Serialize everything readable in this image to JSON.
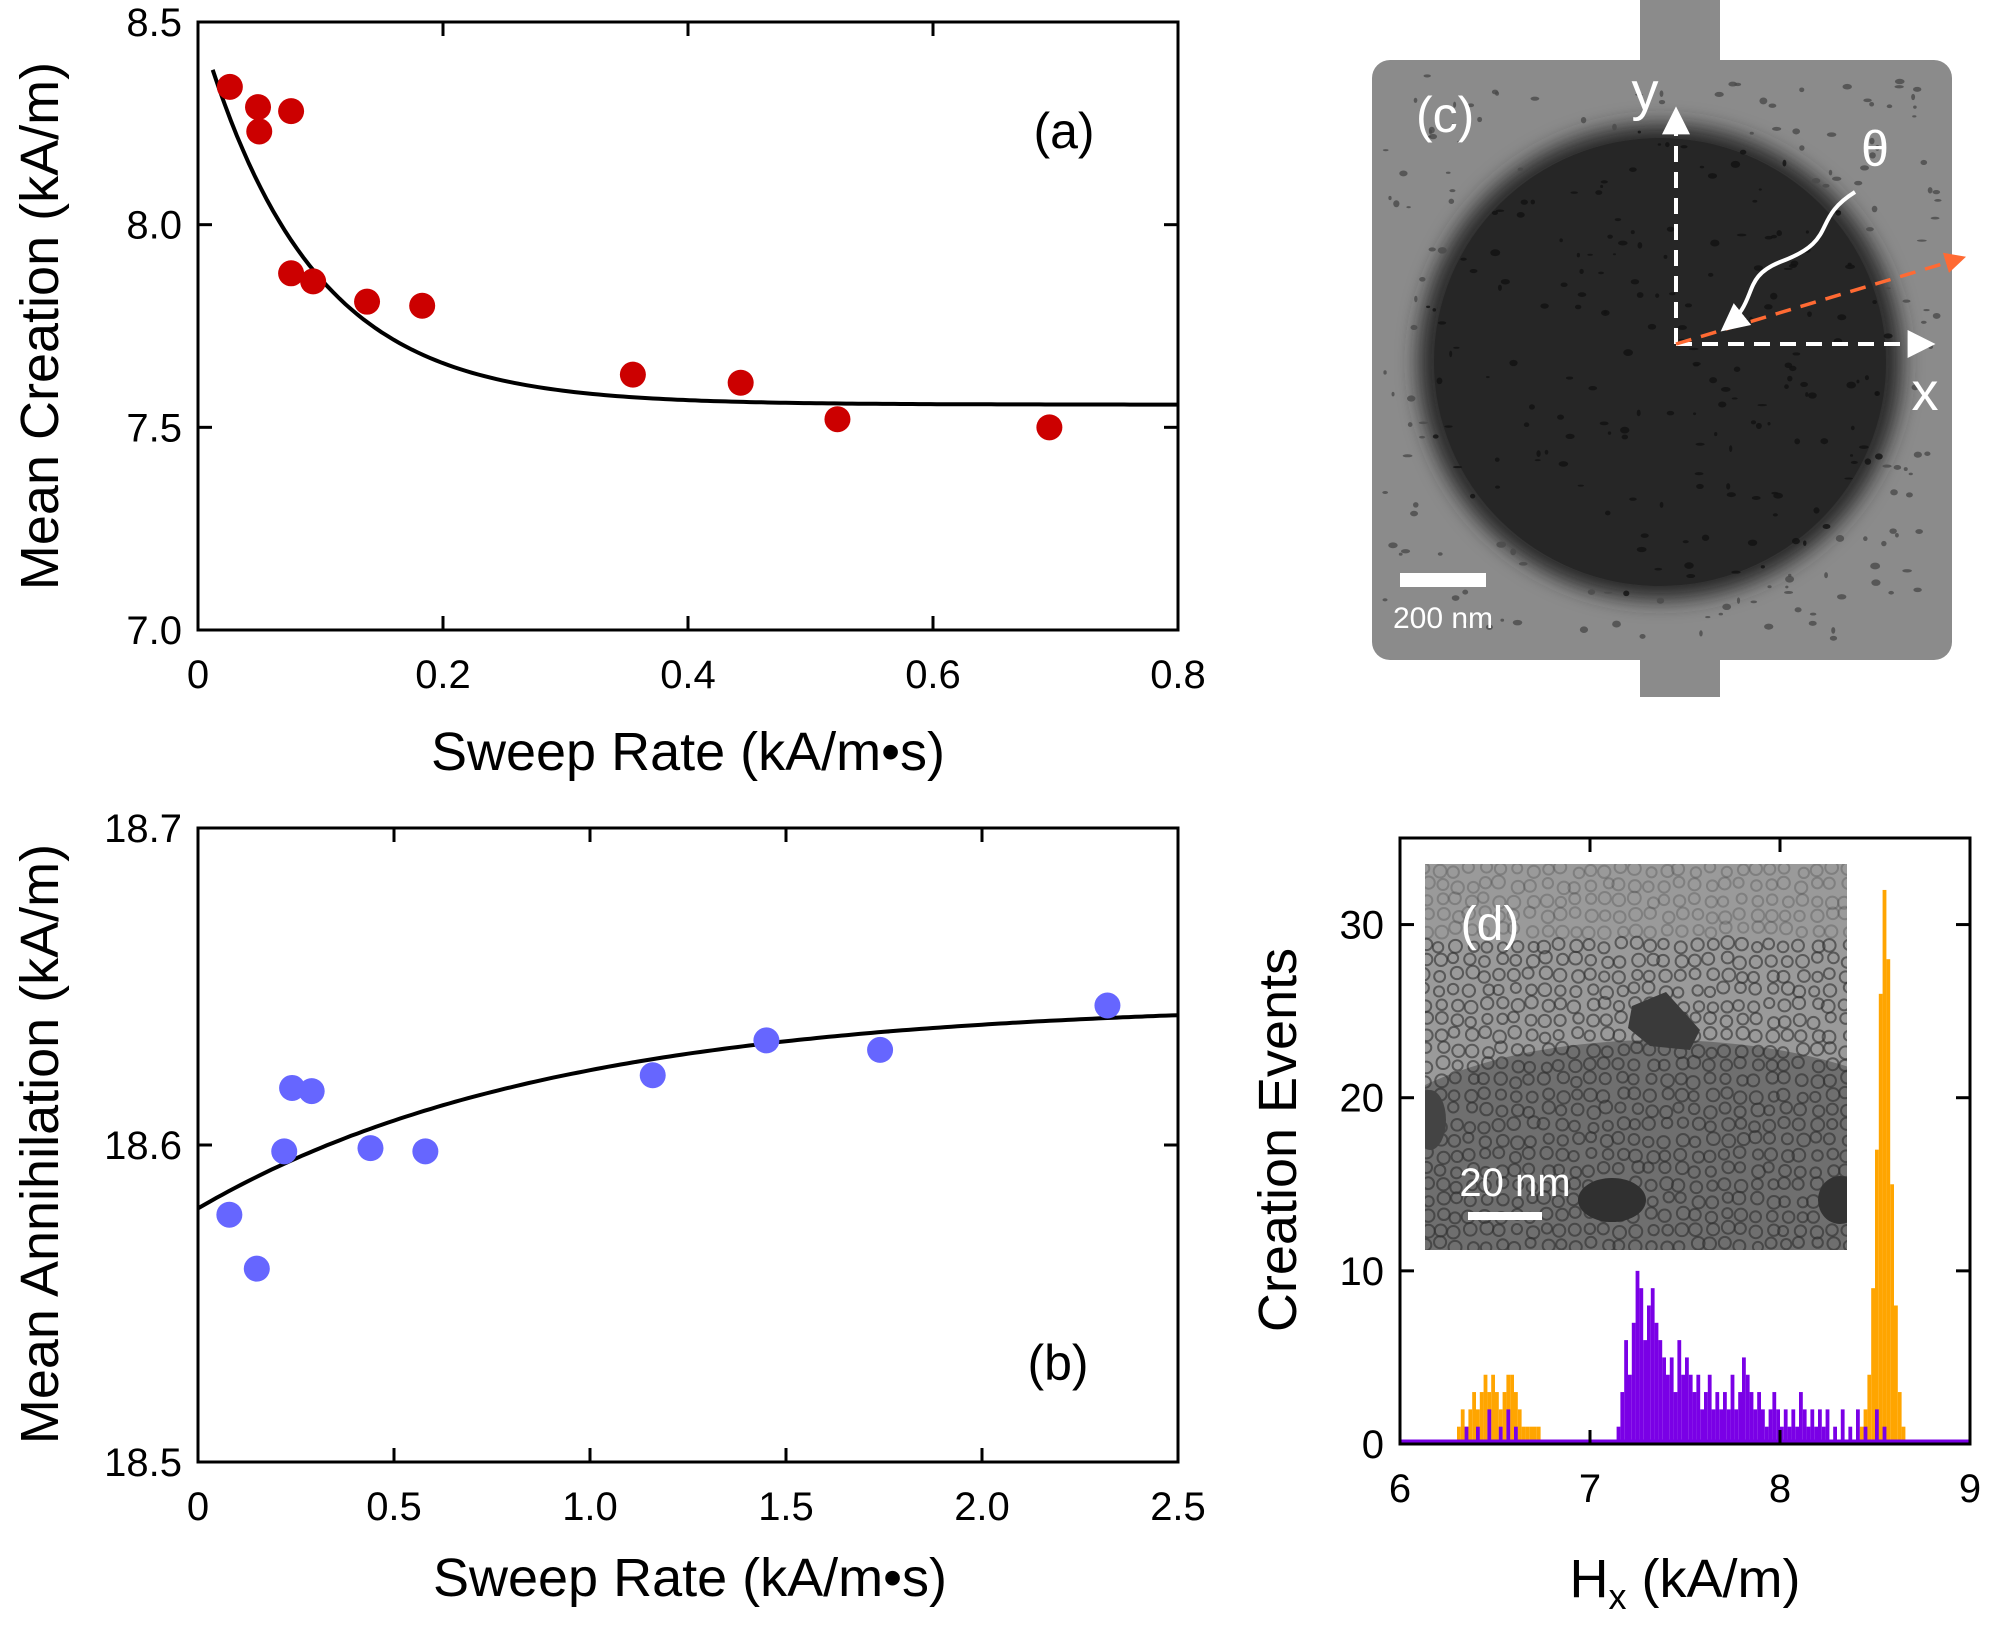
{
  "chart_data": [
    {
      "id": "a",
      "type": "scatter",
      "panel_label": "(a)",
      "title": "",
      "xlabel": "Sweep Rate (kA/m•s)",
      "ylabel": "Mean Creation (kA/m)",
      "xlim": [
        0,
        0.8
      ],
      "ylim": [
        7.0,
        8.5
      ],
      "xticks": [
        0,
        0.2,
        0.4,
        0.6,
        0.8
      ],
      "xtick_labels": [
        "0",
        "0.2",
        "0.4",
        "0.6",
        "0.8"
      ],
      "yticks": [
        7.0,
        7.5,
        8.0,
        8.5
      ],
      "ytick_labels": [
        "7.0",
        "7.5",
        "8.0",
        "8.5"
      ],
      "marker_color": "#cc0000",
      "points": [
        {
          "x": 0.026,
          "y": 8.34
        },
        {
          "x": 0.049,
          "y": 8.29
        },
        {
          "x": 0.05,
          "y": 8.23
        },
        {
          "x": 0.076,
          "y": 8.28
        },
        {
          "x": 0.076,
          "y": 7.88
        },
        {
          "x": 0.094,
          "y": 7.86
        },
        {
          "x": 0.138,
          "y": 7.81
        },
        {
          "x": 0.183,
          "y": 7.8
        },
        {
          "x": 0.355,
          "y": 7.63
        },
        {
          "x": 0.443,
          "y": 7.61
        },
        {
          "x": 0.522,
          "y": 7.52
        },
        {
          "x": 0.695,
          "y": 7.5
        }
      ],
      "fit": {
        "model": "exp_decay",
        "A": 7.556,
        "B": 0.944,
        "tau": 0.09,
        "x0": 0.012,
        "x1": 0.8
      }
    },
    {
      "id": "b",
      "type": "scatter",
      "panel_label": "(b)",
      "title": "",
      "xlabel": "Sweep Rate (kA/m•s)",
      "ylabel": "Mean Annihilation (kA/m)",
      "xlim": [
        0,
        2.5
      ],
      "ylim": [
        18.5,
        18.7
      ],
      "xticks": [
        0,
        0.5,
        1.0,
        1.5,
        2.0,
        2.5
      ],
      "xtick_labels": [
        "0",
        "0.5",
        "1.0",
        "1.5",
        "2.0",
        "2.5"
      ],
      "yticks": [
        18.5,
        18.6,
        18.7
      ],
      "ytick_labels": [
        "18.5",
        "18.6",
        "18.7"
      ],
      "marker_color": "#6666ff",
      "points": [
        {
          "x": 0.08,
          "y": 18.578
        },
        {
          "x": 0.15,
          "y": 18.561
        },
        {
          "x": 0.22,
          "y": 18.598
        },
        {
          "x": 0.24,
          "y": 18.618
        },
        {
          "x": 0.29,
          "y": 18.617
        },
        {
          "x": 0.44,
          "y": 18.599
        },
        {
          "x": 0.58,
          "y": 18.598
        },
        {
          "x": 1.16,
          "y": 18.622
        },
        {
          "x": 1.45,
          "y": 18.633
        },
        {
          "x": 1.74,
          "y": 18.63
        },
        {
          "x": 2.32,
          "y": 18.644
        }
      ],
      "fit": {
        "model": "exp_rise",
        "A": 18.645,
        "B": 0.065,
        "tau": 0.9,
        "x0": 0.0,
        "x1": 2.5
      }
    },
    {
      "id": "d",
      "type": "histogram",
      "panel_label": "(d)",
      "title": "",
      "xlabel": "H",
      "xlabel_sub": "x",
      "xlabel_units": " (kA/m)",
      "ylabel": "Creation Events",
      "xlim": [
        6,
        9
      ],
      "ylim": [
        0,
        35
      ],
      "xticks": [
        6,
        7,
        8,
        9
      ],
      "xtick_labels": [
        "6",
        "7",
        "8",
        "9"
      ],
      "yticks": [
        0,
        10,
        20,
        30
      ],
      "ytick_labels": [
        "0",
        "10",
        "20",
        "30"
      ],
      "bin_width": 0.02,
      "series": [
        {
          "name": "orange",
          "color": "#ffa500",
          "bins": [
            {
              "x": 6.3,
              "v": 1
            },
            {
              "x": 6.32,
              "v": 2
            },
            {
              "x": 6.34,
              "v": 1
            },
            {
              "x": 6.36,
              "v": 2
            },
            {
              "x": 6.38,
              "v": 3
            },
            {
              "x": 6.4,
              "v": 2
            },
            {
              "x": 6.42,
              "v": 3
            },
            {
              "x": 6.44,
              "v": 4
            },
            {
              "x": 6.46,
              "v": 3
            },
            {
              "x": 6.48,
              "v": 4
            },
            {
              "x": 6.5,
              "v": 3
            },
            {
              "x": 6.52,
              "v": 2
            },
            {
              "x": 6.54,
              "v": 3
            },
            {
              "x": 6.56,
              "v": 4
            },
            {
              "x": 6.58,
              "v": 4
            },
            {
              "x": 6.6,
              "v": 3
            },
            {
              "x": 6.62,
              "v": 2
            },
            {
              "x": 6.64,
              "v": 1
            },
            {
              "x": 6.66,
              "v": 1
            },
            {
              "x": 6.68,
              "v": 1
            },
            {
              "x": 6.7,
              "v": 1
            },
            {
              "x": 6.72,
              "v": 1
            },
            {
              "x": 8.42,
              "v": 1
            },
            {
              "x": 8.44,
              "v": 2
            },
            {
              "x": 8.46,
              "v": 4
            },
            {
              "x": 8.48,
              "v": 9
            },
            {
              "x": 8.5,
              "v": 17
            },
            {
              "x": 8.52,
              "v": 26
            },
            {
              "x": 8.54,
              "v": 32
            },
            {
              "x": 8.56,
              "v": 28
            },
            {
              "x": 8.58,
              "v": 15
            },
            {
              "x": 8.6,
              "v": 8
            },
            {
              "x": 8.62,
              "v": 3
            },
            {
              "x": 8.64,
              "v": 1
            }
          ]
        },
        {
          "name": "purple",
          "color": "#7a00e6",
          "bins": [
            {
              "x": 6.34,
              "v": 1
            },
            {
              "x": 6.4,
              "v": 1
            },
            {
              "x": 6.46,
              "v": 2
            },
            {
              "x": 6.52,
              "v": 1
            },
            {
              "x": 6.56,
              "v": 2
            },
            {
              "x": 6.6,
              "v": 1
            },
            {
              "x": 7.14,
              "v": 1
            },
            {
              "x": 7.16,
              "v": 3
            },
            {
              "x": 7.18,
              "v": 6
            },
            {
              "x": 7.2,
              "v": 4
            },
            {
              "x": 7.22,
              "v": 7
            },
            {
              "x": 7.24,
              "v": 10
            },
            {
              "x": 7.26,
              "v": 9
            },
            {
              "x": 7.28,
              "v": 6
            },
            {
              "x": 7.3,
              "v": 8
            },
            {
              "x": 7.32,
              "v": 9
            },
            {
              "x": 7.34,
              "v": 7
            },
            {
              "x": 7.36,
              "v": 6
            },
            {
              "x": 7.38,
              "v": 5
            },
            {
              "x": 7.4,
              "v": 4
            },
            {
              "x": 7.42,
              "v": 5
            },
            {
              "x": 7.44,
              "v": 3
            },
            {
              "x": 7.46,
              "v": 6
            },
            {
              "x": 7.48,
              "v": 4
            },
            {
              "x": 7.5,
              "v": 5
            },
            {
              "x": 7.52,
              "v": 4
            },
            {
              "x": 7.54,
              "v": 3
            },
            {
              "x": 7.56,
              "v": 4
            },
            {
              "x": 7.58,
              "v": 2
            },
            {
              "x": 7.6,
              "v": 3
            },
            {
              "x": 7.62,
              "v": 4
            },
            {
              "x": 7.64,
              "v": 2
            },
            {
              "x": 7.66,
              "v": 3
            },
            {
              "x": 7.68,
              "v": 2
            },
            {
              "x": 7.7,
              "v": 3
            },
            {
              "x": 7.72,
              "v": 2
            },
            {
              "x": 7.74,
              "v": 4
            },
            {
              "x": 7.76,
              "v": 2
            },
            {
              "x": 7.78,
              "v": 3
            },
            {
              "x": 7.8,
              "v": 5
            },
            {
              "x": 7.82,
              "v": 4
            },
            {
              "x": 7.84,
              "v": 3
            },
            {
              "x": 7.86,
              "v": 2
            },
            {
              "x": 7.88,
              "v": 3
            },
            {
              "x": 7.9,
              "v": 2
            },
            {
              "x": 7.92,
              "v": 1
            },
            {
              "x": 7.94,
              "v": 2
            },
            {
              "x": 7.96,
              "v": 3
            },
            {
              "x": 7.98,
              "v": 2
            },
            {
              "x": 8.0,
              "v": 1
            },
            {
              "x": 8.02,
              "v": 2
            },
            {
              "x": 8.04,
              "v": 1
            },
            {
              "x": 8.06,
              "v": 2
            },
            {
              "x": 8.08,
              "v": 1
            },
            {
              "x": 8.1,
              "v": 3
            },
            {
              "x": 8.12,
              "v": 2
            },
            {
              "x": 8.14,
              "v": 1
            },
            {
              "x": 8.16,
              "v": 2
            },
            {
              "x": 8.18,
              "v": 1
            },
            {
              "x": 8.2,
              "v": 2
            },
            {
              "x": 8.22,
              "v": 1
            },
            {
              "x": 8.24,
              "v": 2
            },
            {
              "x": 8.28,
              "v": 1
            },
            {
              "x": 8.32,
              "v": 2
            },
            {
              "x": 8.36,
              "v": 1
            },
            {
              "x": 8.4,
              "v": 2
            },
            {
              "x": 8.44,
              "v": 1
            },
            {
              "x": 8.5,
              "v": 2
            },
            {
              "x": 8.54,
              "v": 1
            }
          ]
        }
      ],
      "inset_label": "(d)",
      "inset_scale_label": "20 nm"
    }
  ],
  "micrograph_c": {
    "panel_label": "(c)",
    "scale_label": "200 nm",
    "axis_y_label": "y",
    "axis_x_label": "x",
    "angle_label": "θ",
    "field_arrow_color": "#ff6a33"
  }
}
